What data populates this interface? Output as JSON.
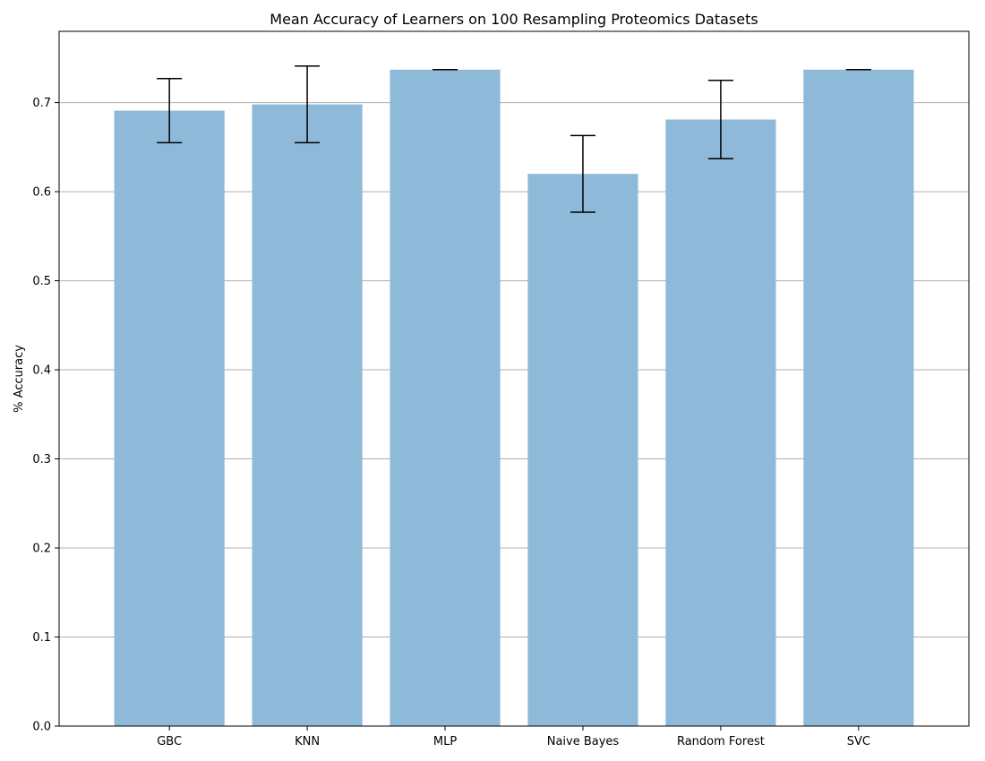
{
  "chart_data": {
    "type": "bar",
    "title": "Mean Accuracy of Learners on 100 Resampling Proteomics Datasets",
    "xlabel": "",
    "ylabel": "% Accuracy",
    "categories": [
      "GBC",
      "KNN",
      "MLP",
      "Naive Bayes",
      "Random Forest",
      "SVC"
    ],
    "values": [
      0.691,
      0.698,
      0.737,
      0.62,
      0.681,
      0.737
    ],
    "errors": [
      0.036,
      0.043,
      0.0,
      0.043,
      0.044,
      0.0
    ],
    "ylim": [
      0,
      0.78
    ],
    "yticks": [
      "0.0",
      "0.1",
      "0.2",
      "0.3",
      "0.4",
      "0.5",
      "0.6",
      "0.7"
    ],
    "grid": "horizontal",
    "colors": {
      "bar": "#8fb9d9",
      "error": "#000000",
      "grid": "#b0b0b0"
    }
  }
}
